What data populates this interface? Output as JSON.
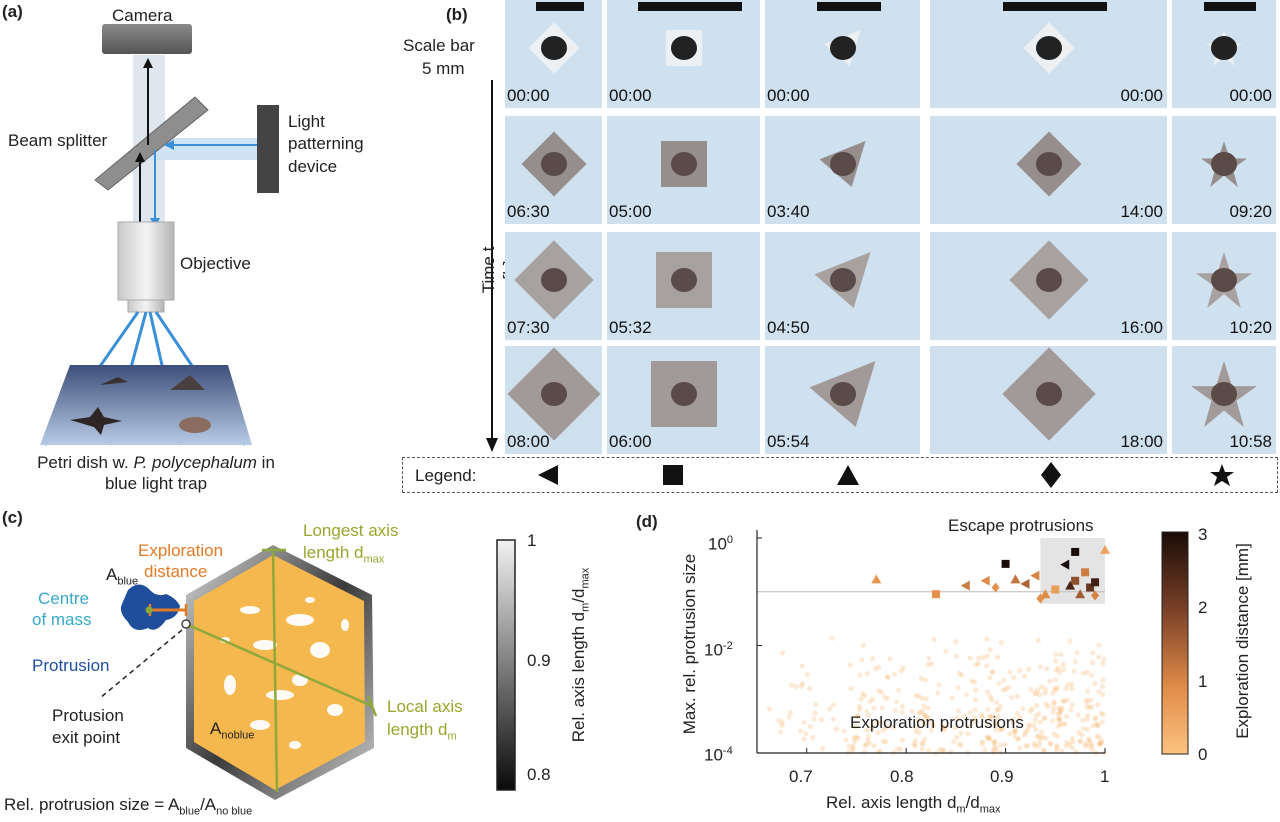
{
  "panel_a": {
    "label": "(a)",
    "camera": "Camera",
    "beam_splitter": "Beam splitter",
    "light_patterning": [
      "Light",
      "patterning",
      "device"
    ],
    "objective": "Objective",
    "petri_line1_pre": "Petri dish w. ",
    "petri_line1_italic": "P. polycephalum",
    "petri_line1_post": " in",
    "petri_line2": "blue light trap"
  },
  "panel_b": {
    "label": "(b)",
    "scale_bar_line1": "Scale bar",
    "scale_bar_line2": "5 mm",
    "time_axis": "Time t [h]",
    "legend_label": "Legend:",
    "columns": [
      {
        "shape": "triangle-left",
        "times": [
          "00:00",
          "06:30",
          "07:30",
          "08:00"
        ]
      },
      {
        "shape": "square",
        "times": [
          "00:00",
          "05:00",
          "05:32",
          "06:00"
        ]
      },
      {
        "shape": "triangle-up",
        "times": [
          "00:00",
          "03:40",
          "04:50",
          "05:54"
        ]
      },
      {
        "shape": "diamond",
        "times": [
          "00:00",
          "14:00",
          "16:00",
          "18:00"
        ]
      },
      {
        "shape": "star",
        "times": [
          "00:00",
          "09:20",
          "10:20",
          "10:58"
        ]
      }
    ]
  },
  "panel_c": {
    "label": "(c)",
    "exploration_distance": [
      "Exploration",
      "distance"
    ],
    "a_blue": "A",
    "a_blue_sub": "blue",
    "centre_of_mass": [
      "Centre",
      "of mass"
    ],
    "protrusion": "Protrusion",
    "exit_point": [
      "Protusion",
      "exit point"
    ],
    "a_noblue": "A",
    "a_noblue_sub": "noblue",
    "longest_axis": [
      "Longest axis",
      "length d"
    ],
    "longest_axis_sub": "max",
    "local_axis": [
      "Local axis",
      "length d"
    ],
    "local_axis_sub": "m",
    "formula_pre": "Rel. protrusion size = A",
    "formula_sub1": "blue",
    "formula_mid": "/A",
    "formula_sub2": "no blue",
    "colorbar_ticks": [
      "1",
      "0.9",
      "0.8"
    ],
    "colorbar_label": "Rel. axis length d",
    "colorbar_label_sub1": "m",
    "colorbar_label_mid": "/d",
    "colorbar_label_sub2": "max",
    "colors": {
      "hexagon_fill": "#f5b84f",
      "blob": "#1f4e9c",
      "centre_text": "#3aa8c8",
      "protrusion_text": "#1f4e9c",
      "orange_text": "#e07b26",
      "olive_text": "#9aa62e"
    }
  },
  "panel_d": {
    "label": "(d)",
    "escape": "Escape protrusions",
    "exploration": "Exploration protrusions",
    "xlabel_pre": "Rel. axis length d",
    "xlabel_sub1": "m",
    "xlabel_mid": "/d",
    "xlabel_sub2": "max",
    "ylabel": "Max. rel. protrusion size",
    "x_ticks": [
      "0.7",
      "0.8",
      "0.9",
      "1"
    ],
    "y_ticks": [
      "10",
      "10",
      "10"
    ],
    "y_tick_exps": [
      "0",
      "-2",
      "-4"
    ],
    "colorbar_ticks": [
      "3",
      "2",
      "1",
      "0"
    ],
    "colorbar_label": "Exploration distance [mm]"
  },
  "chart_data": {
    "type": "scatter",
    "xlabel": "Rel. axis length dm/dmax",
    "ylabel": "Max. rel. protrusion size",
    "xlim": [
      0.65,
      1.0
    ],
    "ylim": [
      0.0001,
      1
    ],
    "y_scale": "log",
    "threshold": 0.1,
    "escape_points": [
      {
        "x": 0.77,
        "y": 0.17,
        "shape": "triangle-up",
        "dist": 0.8
      },
      {
        "x": 0.83,
        "y": 0.09,
        "shape": "square",
        "dist": 0.9
      },
      {
        "x": 0.86,
        "y": 0.13,
        "shape": "triangle-left",
        "dist": 1.2
      },
      {
        "x": 0.88,
        "y": 0.16,
        "shape": "triangle-left",
        "dist": 1.0
      },
      {
        "x": 0.89,
        "y": 0.12,
        "shape": "diamond",
        "dist": 0.9
      },
      {
        "x": 0.9,
        "y": 0.33,
        "shape": "square",
        "dist": 3.0
      },
      {
        "x": 0.91,
        "y": 0.17,
        "shape": "triangle-up",
        "dist": 1.3
      },
      {
        "x": 0.92,
        "y": 0.14,
        "shape": "triangle-left",
        "dist": 1.5
      },
      {
        "x": 0.93,
        "y": 0.2,
        "shape": "triangle-left",
        "dist": 1.1
      },
      {
        "x": 0.95,
        "y": 0.11,
        "shape": "square",
        "dist": 0.7
      },
      {
        "x": 0.96,
        "y": 0.32,
        "shape": "triangle-left",
        "dist": 3.0
      },
      {
        "x": 0.97,
        "y": 0.55,
        "shape": "square",
        "dist": 3.0
      },
      {
        "x": 0.97,
        "y": 0.16,
        "shape": "square",
        "dist": 1.8
      },
      {
        "x": 0.98,
        "y": 0.23,
        "shape": "square",
        "dist": 1.2
      },
      {
        "x": 0.985,
        "y": 0.12,
        "shape": "square",
        "dist": 2.2
      },
      {
        "x": 0.99,
        "y": 0.15,
        "shape": "square",
        "dist": 2.6
      },
      {
        "x": 0.99,
        "y": 0.085,
        "shape": "diamond",
        "dist": 1.1
      },
      {
        "x": 0.935,
        "y": 0.075,
        "shape": "diamond",
        "dist": 0.9
      },
      {
        "x": 0.94,
        "y": 0.09,
        "shape": "triangle-up",
        "dist": 1.0
      },
      {
        "x": 0.975,
        "y": 0.09,
        "shape": "triangle-up",
        "dist": 1.6
      },
      {
        "x": 0.965,
        "y": 0.13,
        "shape": "triangle-up",
        "dist": 2.5
      },
      {
        "x": 1.0,
        "y": 0.6,
        "shape": "triangle-up",
        "dist": 0.6
      }
    ],
    "colorbar": {
      "label": "Exploration distance [mm]",
      "range": [
        0,
        3
      ]
    }
  }
}
